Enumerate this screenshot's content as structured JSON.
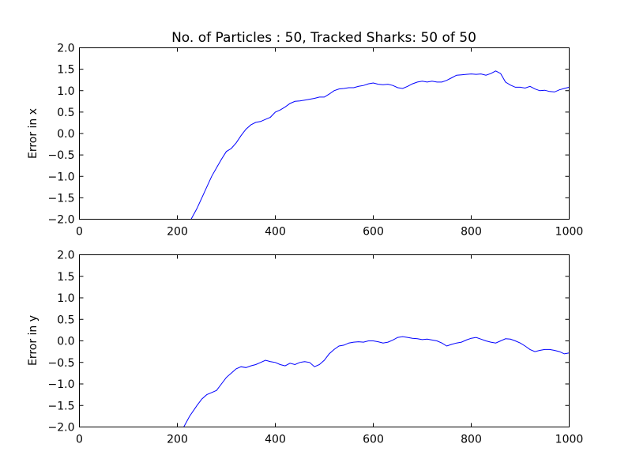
{
  "chart_data": [
    {
      "type": "line",
      "title": "No. of Particles : 50, Tracked Sharks: 50 of 50",
      "xlabel": "",
      "ylabel": "Error in x",
      "xlim": [
        0,
        1000
      ],
      "ylim": [
        -2.0,
        2.0
      ],
      "xticks": [
        "0",
        "200",
        "400",
        "600",
        "800",
        "1000"
      ],
      "yticks": [
        "−2.0",
        "−1.5",
        "−1.0",
        "−0.5",
        "0.0",
        "0.5",
        "1.0",
        "1.5",
        "2.0"
      ],
      "grid": false,
      "color": "#0000ff",
      "series": [
        {
          "x": [
            228,
            240,
            250,
            260,
            270,
            280,
            290,
            300,
            310,
            320,
            330,
            340,
            350,
            360,
            370,
            380,
            390,
            400,
            410,
            420,
            430,
            440,
            450,
            460,
            470,
            480,
            490,
            500,
            510,
            520,
            530,
            540,
            550,
            560,
            570,
            580,
            590,
            600,
            610,
            620,
            630,
            640,
            650,
            660,
            670,
            680,
            690,
            700,
            710,
            720,
            730,
            740,
            750,
            760,
            770,
            780,
            790,
            800,
            810,
            820,
            830,
            840,
            850,
            860,
            870,
            880,
            890,
            900,
            910,
            920,
            930,
            940,
            950,
            960,
            970,
            980,
            990,
            1000
          ],
          "values": [
            -2.0,
            -1.75,
            -1.5,
            -1.25,
            -1.0,
            -0.8,
            -0.6,
            -0.42,
            -0.35,
            -0.22,
            -0.05,
            0.1,
            0.2,
            0.26,
            0.28,
            0.33,
            0.38,
            0.5,
            0.55,
            0.62,
            0.7,
            0.75,
            0.76,
            0.78,
            0.8,
            0.82,
            0.85,
            0.85,
            0.92,
            1.0,
            1.04,
            1.05,
            1.07,
            1.07,
            1.1,
            1.12,
            1.16,
            1.18,
            1.15,
            1.14,
            1.15,
            1.12,
            1.07,
            1.05,
            1.1,
            1.16,
            1.2,
            1.22,
            1.2,
            1.22,
            1.2,
            1.2,
            1.24,
            1.3,
            1.36,
            1.37,
            1.38,
            1.39,
            1.38,
            1.39,
            1.36,
            1.4,
            1.46,
            1.4,
            1.2,
            1.13,
            1.08,
            1.08,
            1.06,
            1.1,
            1.04,
            1.0,
            1.01,
            0.98,
            0.97,
            1.02,
            1.05,
            1.08
          ]
        }
      ]
    },
    {
      "type": "line",
      "title": "",
      "xlabel": "",
      "ylabel": "Error in y",
      "xlim": [
        0,
        1000
      ],
      "ylim": [
        -2.0,
        2.0
      ],
      "xticks": [
        "0",
        "200",
        "400",
        "600",
        "800",
        "1000"
      ],
      "yticks": [
        "−2.0",
        "−1.5",
        "−1.0",
        "−0.5",
        "0.0",
        "0.5",
        "1.0",
        "1.5",
        "2.0"
      ],
      "grid": false,
      "color": "#0000ff",
      "series": [
        {
          "x": [
            213,
            225,
            240,
            250,
            260,
            270,
            280,
            290,
            300,
            310,
            320,
            330,
            340,
            350,
            360,
            370,
            380,
            390,
            400,
            410,
            420,
            430,
            440,
            450,
            460,
            470,
            480,
            490,
            500,
            510,
            520,
            530,
            540,
            550,
            560,
            570,
            580,
            590,
            600,
            610,
            620,
            630,
            640,
            650,
            660,
            670,
            680,
            690,
            700,
            710,
            720,
            730,
            740,
            750,
            760,
            770,
            780,
            790,
            800,
            810,
            820,
            830,
            840,
            850,
            860,
            870,
            880,
            890,
            900,
            910,
            920,
            930,
            940,
            950,
            960,
            970,
            980,
            990,
            1000
          ],
          "values": [
            -2.0,
            -1.75,
            -1.5,
            -1.35,
            -1.25,
            -1.2,
            -1.15,
            -1.0,
            -0.85,
            -0.75,
            -0.65,
            -0.6,
            -0.62,
            -0.58,
            -0.55,
            -0.5,
            -0.45,
            -0.48,
            -0.5,
            -0.55,
            -0.58,
            -0.52,
            -0.55,
            -0.5,
            -0.48,
            -0.5,
            -0.6,
            -0.55,
            -0.45,
            -0.3,
            -0.2,
            -0.12,
            -0.1,
            -0.05,
            -0.03,
            -0.02,
            -0.03,
            0.0,
            0.0,
            -0.02,
            -0.05,
            -0.03,
            0.02,
            0.08,
            0.1,
            0.08,
            0.06,
            0.05,
            0.03,
            0.04,
            0.02,
            0.0,
            -0.05,
            -0.12,
            -0.08,
            -0.05,
            -0.03,
            0.02,
            0.06,
            0.08,
            0.04,
            0.0,
            -0.03,
            -0.05,
            0.0,
            0.05,
            0.04,
            0.0,
            -0.05,
            -0.12,
            -0.2,
            -0.25,
            -0.22,
            -0.2,
            -0.2,
            -0.22,
            -0.25,
            -0.3,
            -0.28
          ]
        }
      ]
    }
  ]
}
